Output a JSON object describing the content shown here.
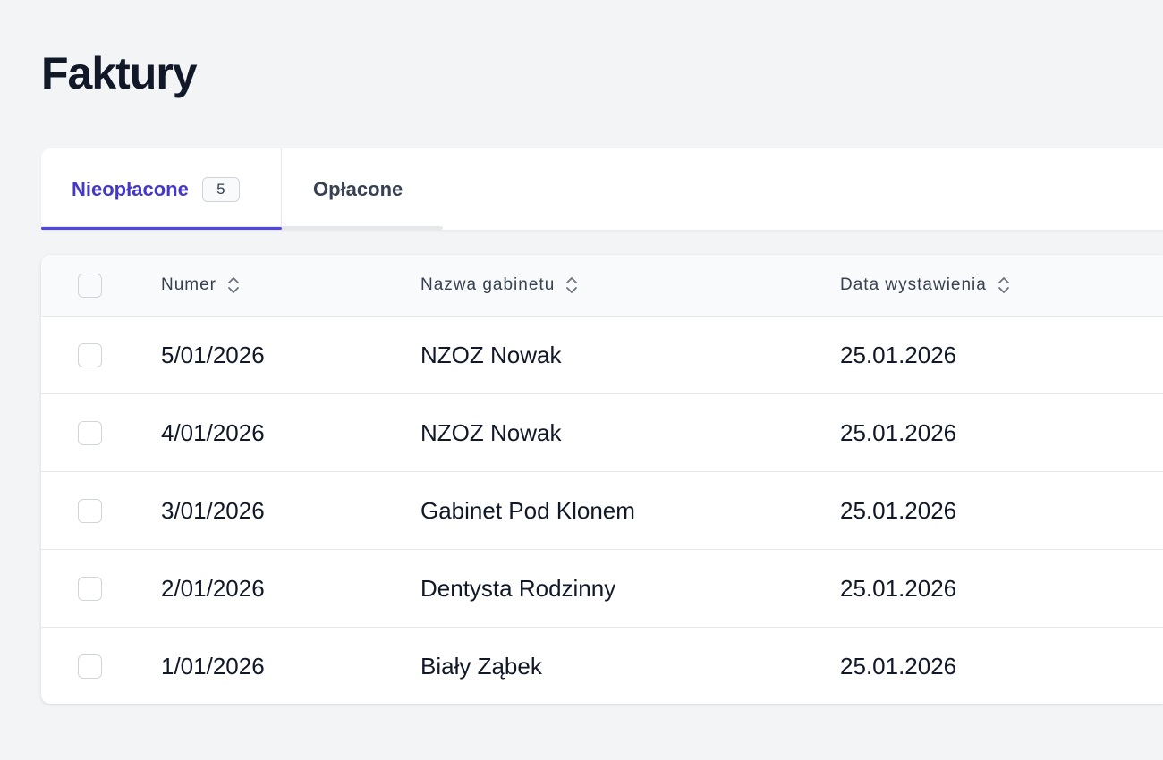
{
  "header": {
    "title": "Faktury"
  },
  "tabs": [
    {
      "label": "Nieopłacone",
      "count": "5",
      "active": true
    },
    {
      "label": "Opłacone",
      "active": false
    }
  ],
  "table": {
    "columns": [
      {
        "label": "Numer"
      },
      {
        "label": "Nazwa gabinetu"
      },
      {
        "label": "Data wystawienia"
      }
    ],
    "rows": [
      {
        "number": "5/01/2026",
        "name": "NZOZ Nowak",
        "date": "25.01.2026"
      },
      {
        "number": "4/01/2026",
        "name": "NZOZ Nowak",
        "date": "25.01.2026"
      },
      {
        "number": "3/01/2026",
        "name": "Gabinet Pod Klonem",
        "date": "25.01.2026"
      },
      {
        "number": "2/01/2026",
        "name": "Dentysta Rodzinny",
        "date": "25.01.2026"
      },
      {
        "number": "1/01/2026",
        "name": "Biały Ząbek",
        "date": "25.01.2026"
      }
    ]
  },
  "icons": {
    "sort": "sort-icon",
    "checkbox": "checkbox-empty"
  },
  "colors": {
    "accent": "#4f46e5",
    "background": "#f3f4f6"
  }
}
